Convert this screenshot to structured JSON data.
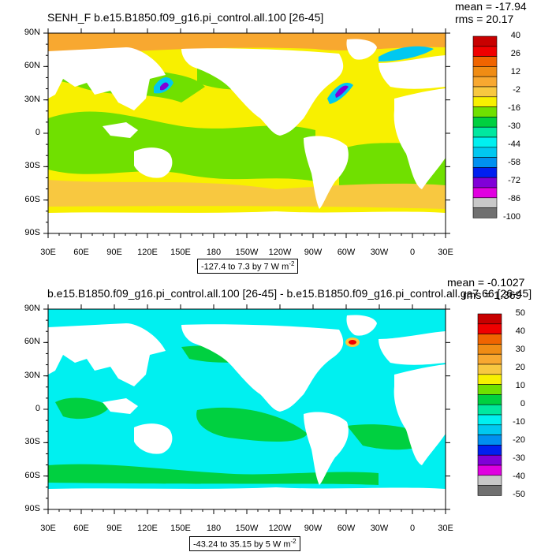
{
  "panels": [
    {
      "title": "SENH_F b.e15.B1850.f09_g16.pi_control.all.100 [26-45]",
      "mean_text": "mean = -17.94",
      "rms_text": "rms = 20.17",
      "lat_labels": [
        "90N",
        "60N",
        "30N",
        "0",
        "30S",
        "60S",
        "90S"
      ],
      "lon_labels": [
        "30E",
        "60E",
        "90E",
        "120E",
        "150E",
        "180",
        "150W",
        "120W",
        "90W",
        "60W",
        "30W",
        "0",
        "30E"
      ],
      "range_text": "-127.4 to 7.3 by 7  W m",
      "range_sup": "-2",
      "colorbar_labels": [
        "40",
        "26",
        "12",
        "-2",
        "-16",
        "-30",
        "-44",
        "-58",
        "-72",
        "-86",
        "-100"
      ],
      "colorbar_colors": [
        "#c80000",
        "#f00000",
        "#f06400",
        "#f08c14",
        "#f8a830",
        "#f8c840",
        "#f8f000",
        "#70e000",
        "#00d040",
        "#00e8a0",
        "#00f0f0",
        "#00c8f0",
        "#0090f0",
        "#0020f0",
        "#8000d8",
        "#e000e0",
        "#c8c8c8",
        "#707070"
      ]
    },
    {
      "title": "b.e15.B1850.f09_g16.pi_control.all.100 [26-45] - b.e15.B1850.f09_g16.pi_control.all.ga7.66 [26-45]",
      "mean_text": "mean = -0.1027",
      "rms_text": "rms = 1.369",
      "lat_labels": [
        "90N",
        "60N",
        "30N",
        "0",
        "30S",
        "60S",
        "90S"
      ],
      "lon_labels": [
        "30E",
        "60E",
        "90E",
        "120E",
        "150E",
        "180",
        "150W",
        "120W",
        "90W",
        "60W",
        "30W",
        "0",
        "30E"
      ],
      "range_text": "-43.24 to 35.15 by 5  W m",
      "range_sup": "-2",
      "colorbar_labels": [
        "50",
        "40",
        "30",
        "20",
        "10",
        "0",
        "-10",
        "-20",
        "-30",
        "-40",
        "-50"
      ],
      "colorbar_colors": [
        "#c80000",
        "#f00000",
        "#f06400",
        "#f08c14",
        "#f8a830",
        "#f8c840",
        "#f8f000",
        "#70e000",
        "#00d040",
        "#00e8a0",
        "#00f0f0",
        "#00c8f0",
        "#0090f0",
        "#0020f0",
        "#8000d8",
        "#e000e0",
        "#c8c8c8",
        "#707070"
      ]
    }
  ],
  "styling": {
    "land_color": "#ffffff",
    "panel1_ocean_base": "#f8f000",
    "panel1_tropics": "#70e000",
    "panel1_arctic": "#f8a830",
    "panel1_southern": "#f8c840",
    "panel2_ocean_base": "#00f0f0",
    "panel2_patches": "#00d040",
    "panel2_arctic": "#00f0f0"
  }
}
